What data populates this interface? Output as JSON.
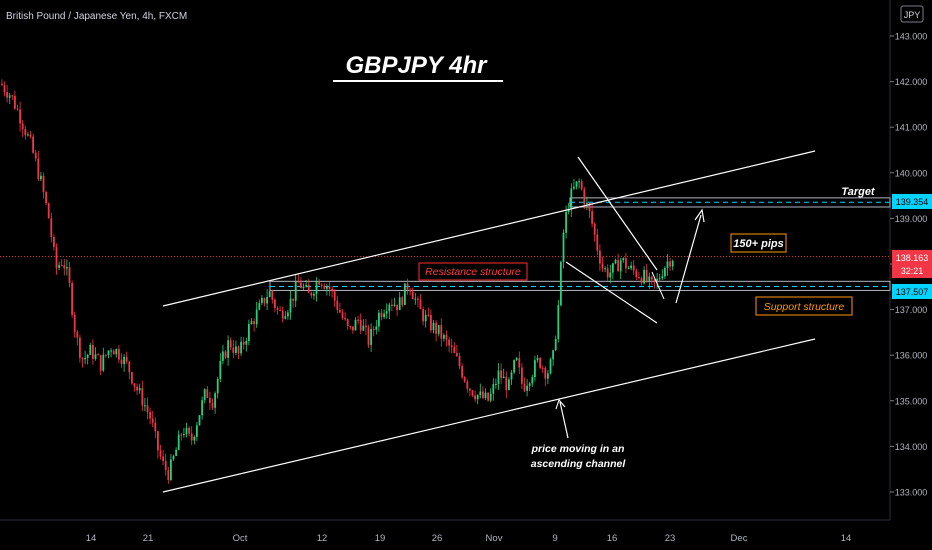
{
  "header": {
    "symbol_title": "British Pound / Japanese Yen, 4h, FXCM",
    "currency_badge": "JPY"
  },
  "chart_data": {
    "type": "candlestick",
    "title": "GBPJPY 4hr",
    "y_axis": {
      "ticks": [
        "143.000",
        "142.000",
        "141.000",
        "140.000",
        "139.000",
        "138.000",
        "137.000",
        "136.000",
        "135.000",
        "134.000",
        "133.000"
      ],
      "range": [
        132.6,
        143.3
      ]
    },
    "x_axis": {
      "ticks": [
        "14",
        "21",
        "Oct",
        "12",
        "19",
        "26",
        "Nov",
        "9",
        "16",
        "23",
        "Dec",
        "14"
      ]
    },
    "price_labels": {
      "last_price": "138.163",
      "countdown": "32:21",
      "resistance_level": "139.354",
      "support_level": "137.507"
    },
    "levels": {
      "last_price": 138.163,
      "target_zone": [
        139.25,
        139.45
      ],
      "target_dashed": 139.354,
      "support_zone": [
        137.42,
        137.62
      ],
      "support_dashed": 137.507
    },
    "annotations": {
      "target": "Target",
      "pips": "150+ pips",
      "resistance": "Resistance structure",
      "support": "Support structure",
      "channel_note_line1": "price moving in an",
      "channel_note_line2": "ascending channel"
    },
    "price_path": [
      [
        0,
        141.95
      ],
      [
        10,
        141.7
      ],
      [
        20,
        141.2
      ],
      [
        30,
        140.6
      ],
      [
        40,
        139.8
      ],
      [
        48,
        139.0
      ],
      [
        55,
        137.9
      ],
      [
        62,
        138.1
      ],
      [
        68,
        137.6
      ],
      [
        75,
        136.4
      ],
      [
        82,
        135.9
      ],
      [
        90,
        136.1
      ],
      [
        100,
        135.8
      ],
      [
        110,
        136.2
      ],
      [
        120,
        136.0
      ],
      [
        128,
        135.7
      ],
      [
        135,
        135.3
      ],
      [
        142,
        135.0
      ],
      [
        150,
        134.6
      ],
      [
        156,
        134.0
      ],
      [
        162,
        133.6
      ],
      [
        168,
        133.4
      ],
      [
        175,
        133.9
      ],
      [
        182,
        134.4
      ],
      [
        190,
        134.1
      ],
      [
        198,
        134.7
      ],
      [
        205,
        135.2
      ],
      [
        212,
        135.0
      ],
      [
        220,
        135.8
      ],
      [
        228,
        136.3
      ],
      [
        238,
        136.0
      ],
      [
        248,
        136.6
      ],
      [
        258,
        137.0
      ],
      [
        268,
        137.4
      ],
      [
        278,
        136.9
      ],
      [
        288,
        137.1
      ],
      [
        298,
        137.6
      ],
      [
        308,
        137.3
      ],
      [
        318,
        137.7
      ],
      [
        328,
        137.5
      ],
      [
        338,
        137.0
      ],
      [
        348,
        136.5
      ],
      [
        358,
        136.8
      ],
      [
        368,
        136.3
      ],
      [
        378,
        136.9
      ],
      [
        388,
        137.2
      ],
      [
        398,
        137.1
      ],
      [
        408,
        137.6
      ],
      [
        418,
        137.0
      ],
      [
        428,
        136.7
      ],
      [
        438,
        136.5
      ],
      [
        448,
        136.2
      ],
      [
        458,
        135.8
      ],
      [
        468,
        135.3
      ],
      [
        478,
        135.1
      ],
      [
        488,
        135.0
      ],
      [
        498,
        135.6
      ],
      [
        508,
        135.3
      ],
      [
        515,
        135.9
      ],
      [
        522,
        135.3
      ],
      [
        530,
        135.6
      ],
      [
        538,
        135.9
      ],
      [
        546,
        135.6
      ],
      [
        552,
        135.9
      ],
      [
        558,
        137.2
      ],
      [
        562,
        138.6
      ],
      [
        567,
        139.3
      ],
      [
        572,
        139.6
      ],
      [
        578,
        139.8
      ],
      [
        584,
        139.4
      ],
      [
        590,
        139.0
      ],
      [
        596,
        138.4
      ],
      [
        602,
        137.9
      ],
      [
        608,
        137.8
      ],
      [
        614,
        137.9
      ],
      [
        620,
        138.1
      ],
      [
        628,
        137.9
      ],
      [
        636,
        137.8
      ],
      [
        644,
        137.7
      ],
      [
        650,
        137.5
      ],
      [
        656,
        137.6
      ],
      [
        662,
        137.9
      ],
      [
        668,
        138.1
      ],
      [
        672,
        138.16
      ]
    ]
  }
}
